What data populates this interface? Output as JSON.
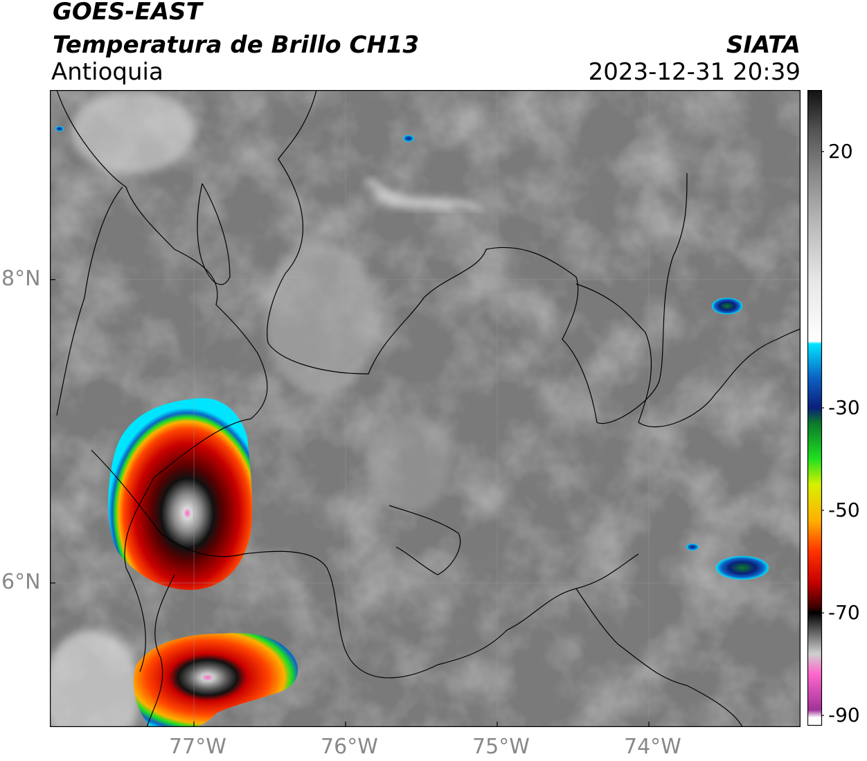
{
  "header": {
    "satellite": "GOES-EAST",
    "product": "Temperatura de Brillo CH13",
    "region": "Antioquia",
    "agency": "SIATA",
    "datetime": "2023-12-31 20:39"
  },
  "map": {
    "lon_ticks": [
      {
        "value": -77,
        "label": "77°W"
      },
      {
        "value": -76,
        "label": "76°W"
      },
      {
        "value": -75,
        "label": "75°W"
      },
      {
        "value": -74,
        "label": "74°W"
      }
    ],
    "lat_ticks": [
      {
        "value": 8,
        "label": "8°N"
      },
      {
        "value": 6,
        "label": "6°N"
      }
    ],
    "lon_range": [
      -77.95,
      -73.0
    ],
    "lat_range": [
      5.05,
      9.25
    ],
    "gridlines": true,
    "background_color": "#7a7a7a",
    "border_color": "#000000",
    "features": [
      "storm-cell-west",
      "storm-cell-southwest",
      "small-cell-east-north",
      "small-cell-east-south"
    ]
  },
  "colorbar": {
    "labels": [
      {
        "value": 20,
        "text": "20"
      },
      {
        "value": -30,
        "text": "-30"
      },
      {
        "value": -50,
        "text": "-50"
      },
      {
        "value": -70,
        "text": "-70"
      },
      {
        "value": -90,
        "text": "-90"
      }
    ],
    "range": [
      -92,
      32
    ],
    "stops": [
      {
        "value": 32,
        "color": "#111111"
      },
      {
        "value": 24,
        "color": "#555555"
      },
      {
        "value": 15,
        "color": "#8c8c8c"
      },
      {
        "value": 5,
        "color": "#bdbdbd"
      },
      {
        "value": -5,
        "color": "#e6e6e6"
      },
      {
        "value": -17,
        "color": "#ffffff"
      },
      {
        "value": -17.5,
        "color": "#00e5ff"
      },
      {
        "value": -24,
        "color": "#0d63c6"
      },
      {
        "value": -30,
        "color": "#0a1f7a"
      },
      {
        "value": -33,
        "color": "#0b7a2b"
      },
      {
        "value": -40,
        "color": "#20e020"
      },
      {
        "value": -45,
        "color": "#d8f000"
      },
      {
        "value": -52,
        "color": "#ffb000"
      },
      {
        "value": -58,
        "color": "#ff3300"
      },
      {
        "value": -64,
        "color": "#c80000"
      },
      {
        "value": -69,
        "color": "#3a0000"
      },
      {
        "value": -70,
        "color": "#000000"
      },
      {
        "value": -78,
        "color": "#cfcfcf"
      },
      {
        "value": -82,
        "color": "#ff66cc"
      },
      {
        "value": -89,
        "color": "#a0329a"
      },
      {
        "value": -90.5,
        "color": "#ffffff"
      }
    ]
  }
}
